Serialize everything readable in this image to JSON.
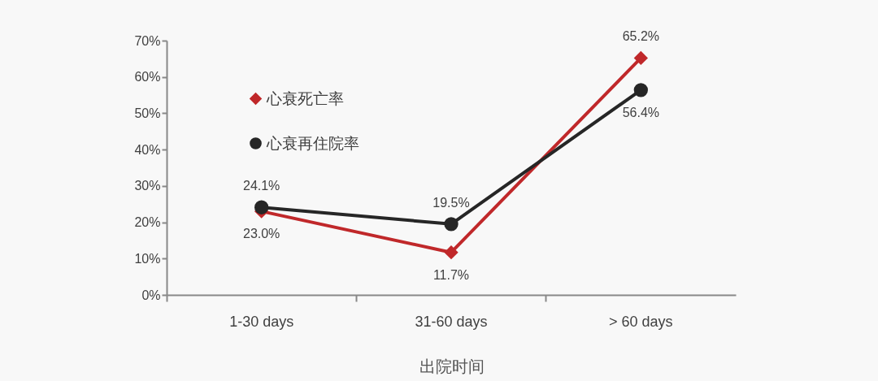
{
  "chart_data": {
    "type": "line",
    "xlabel": "出院时间",
    "categories": [
      "1-30 days",
      "31-60 days",
      "> 60 days"
    ],
    "series": [
      {
        "name": "心衰死亡率",
        "color": "#c0282a",
        "marker": "diamond",
        "values": [
          23.0,
          11.7,
          65.2
        ],
        "value_labels": [
          "23.0%",
          "11.7%",
          "65.2%"
        ]
      },
      {
        "name": "心衰再住院率",
        "color": "#262626",
        "marker": "circle",
        "values": [
          24.1,
          19.5,
          56.4
        ],
        "value_labels": [
          "24.1%",
          "19.5%",
          "56.4%"
        ]
      }
    ],
    "ylim": [
      0,
      70
    ],
    "yticks": [
      {
        "value": 0,
        "label": "0%"
      },
      {
        "value": 10,
        "label": "10%"
      },
      {
        "value": 20,
        "label": "20%"
      },
      {
        "value": 30,
        "label": "30%"
      },
      {
        "value": 40,
        "label": "40%"
      },
      {
        "value": 50,
        "label": "50%"
      },
      {
        "value": 60,
        "label": "60%"
      },
      {
        "value": 70,
        "label": "70%"
      }
    ],
    "grid": false,
    "legend": "top left",
    "line_style": "solid"
  }
}
